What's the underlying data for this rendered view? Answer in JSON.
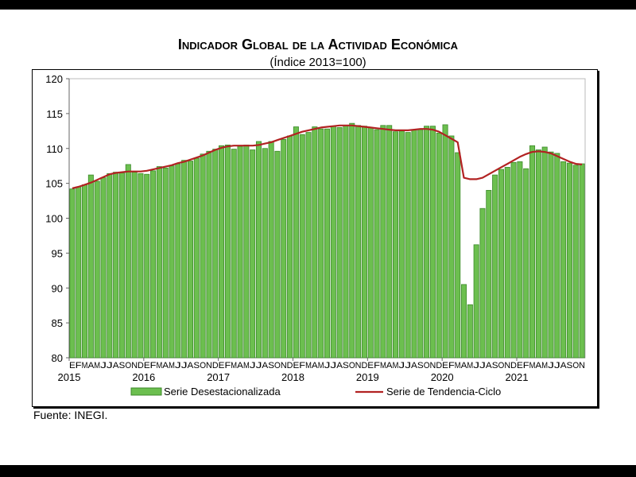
{
  "chart_data": {
    "type": "bar",
    "title": "Indicador Global de la Actividad Económica",
    "subtitle": "(Índice 2013=100)",
    "ylim": [
      80,
      120
    ],
    "yticks": [
      80,
      85,
      90,
      95,
      100,
      105,
      110,
      115,
      120
    ],
    "month_labels": [
      "E",
      "F",
      "M",
      "A",
      "M",
      "J",
      "J",
      "A",
      "S",
      "O",
      "N",
      "D"
    ],
    "years": [
      "2015",
      "2016",
      "2017",
      "2018",
      "2019",
      "2020",
      "2021"
    ],
    "legend": {
      "placement": "bottom"
    },
    "colors": {
      "bars": "#6cbf4f",
      "bar_border": "#3c8a2a",
      "trend": "#b22222"
    },
    "series": [
      {
        "name": "Serie Desestacionalizada",
        "kind": "bar",
        "values": [
          104.2,
          104.5,
          104.8,
          106.2,
          105.3,
          105.8,
          106.4,
          106.6,
          106.5,
          107.7,
          106.6,
          106.4,
          106.3,
          106.8,
          107.4,
          107.2,
          107.5,
          107.8,
          108.3,
          108.2,
          108.6,
          109.2,
          109.6,
          109.9,
          110.4,
          110.5,
          109.9,
          110.3,
          110.5,
          109.8,
          111.0,
          110.0,
          111.0,
          109.6,
          111.3,
          111.8,
          113.1,
          112.0,
          112.3,
          113.1,
          112.8,
          112.8,
          113.2,
          113.0,
          113.3,
          113.6,
          113.3,
          113.2,
          113.0,
          112.7,
          113.3,
          113.3,
          112.4,
          112.5,
          112.3,
          112.7,
          112.7,
          113.2,
          113.2,
          112.2,
          113.4,
          111.8,
          109.4,
          90.5,
          87.6,
          96.2,
          101.4,
          104.0,
          106.2,
          107.0,
          107.3,
          108.0,
          108.1,
          107.1,
          110.4,
          109.8,
          110.2,
          109.5,
          109.3,
          108.1,
          107.9,
          107.6,
          107.8
        ]
      },
      {
        "name": "Serie de Tendencia-Ciclo",
        "kind": "line",
        "values": [
          104.3,
          104.5,
          104.8,
          105.1,
          105.5,
          105.9,
          106.3,
          106.5,
          106.6,
          106.7,
          106.7,
          106.7,
          106.8,
          107.0,
          107.2,
          107.4,
          107.6,
          107.9,
          108.1,
          108.4,
          108.7,
          109.0,
          109.4,
          109.8,
          110.1,
          110.3,
          110.4,
          110.4,
          110.4,
          110.4,
          110.5,
          110.7,
          110.9,
          111.2,
          111.5,
          111.8,
          112.1,
          112.4,
          112.6,
          112.8,
          113.0,
          113.1,
          113.2,
          113.3,
          113.3,
          113.3,
          113.2,
          113.1,
          113.0,
          112.9,
          112.8,
          112.7,
          112.6,
          112.6,
          112.6,
          112.7,
          112.8,
          112.8,
          112.7,
          112.4,
          111.9,
          111.4,
          110.9,
          105.8,
          105.6,
          105.6,
          105.8,
          106.3,
          106.8,
          107.3,
          107.8,
          108.3,
          108.8,
          109.2,
          109.5,
          109.6,
          109.5,
          109.3,
          108.9,
          108.5,
          108.1,
          107.8,
          107.7
        ]
      }
    ]
  },
  "footer": {
    "source": "Fuente: INEGI."
  }
}
